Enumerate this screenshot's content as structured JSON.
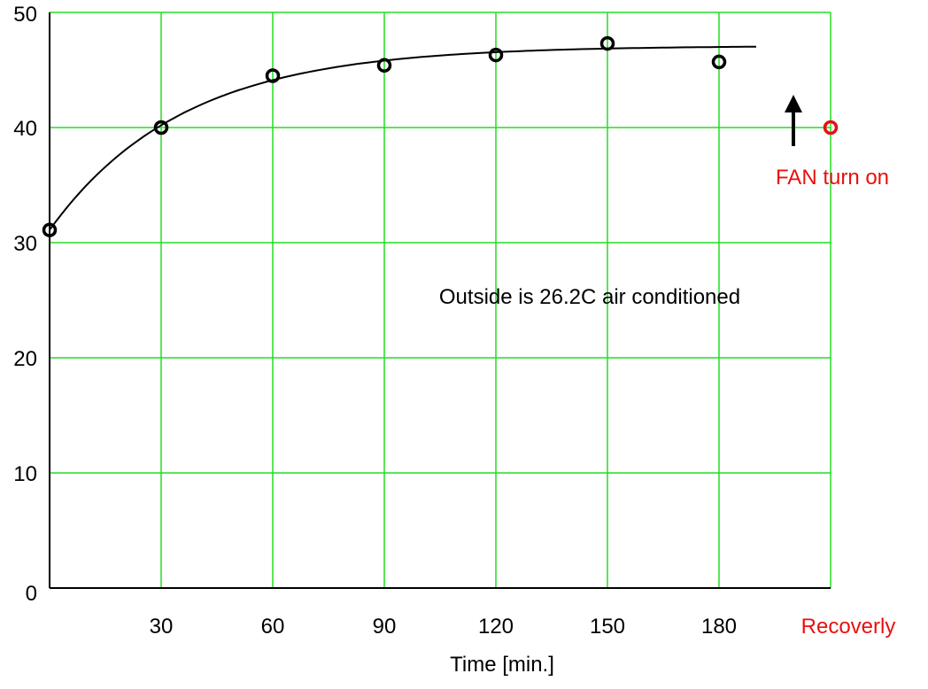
{
  "chart_data": {
    "type": "scatter",
    "xlabel": "Time [min.]",
    "ylabel": "",
    "xlim": [
      0,
      210
    ],
    "ylim": [
      0,
      50
    ],
    "x_ticks": [
      {
        "value": 30,
        "label": "30"
      },
      {
        "value": 60,
        "label": "60"
      },
      {
        "value": 90,
        "label": "90"
      },
      {
        "value": 120,
        "label": "120"
      },
      {
        "value": 150,
        "label": "150"
      },
      {
        "value": 180,
        "label": "180"
      }
    ],
    "recovery_label": "Recoverly",
    "y_ticks": [
      {
        "value": 0,
        "label": "0"
      },
      {
        "value": 10,
        "label": "10"
      },
      {
        "value": 20,
        "label": "20"
      },
      {
        "value": 30,
        "label": "30"
      },
      {
        "value": 40,
        "label": "40"
      },
      {
        "value": 50,
        "label": "50"
      }
    ],
    "grid": true,
    "series": [
      {
        "marker": "circle",
        "color": "#000000",
        "points": [
          {
            "x": 0,
            "y": 31.1
          },
          {
            "x": 30,
            "y": 40.0
          },
          {
            "x": 60,
            "y": 44.5
          },
          {
            "x": 90,
            "y": 45.4
          },
          {
            "x": 120,
            "y": 46.3
          },
          {
            "x": 150,
            "y": 47.3
          },
          {
            "x": 180,
            "y": 45.7
          }
        ]
      }
    ],
    "trend_curve": {
      "type": "exponential",
      "x_range": [
        0,
        190
      ],
      "asymptote": 47.1,
      "start": 31.1,
      "rate": 0.028,
      "color": "#000000"
    },
    "recovery_point": {
      "x": 210,
      "y": 40.0,
      "color": "#e81010"
    },
    "annotations": {
      "fan_label": "FAN turn on",
      "note": "Outside is 26.2C air conditioned"
    },
    "colors": {
      "grid": "#22dd22",
      "axis": "#000000",
      "accent_red": "#e81010"
    }
  }
}
